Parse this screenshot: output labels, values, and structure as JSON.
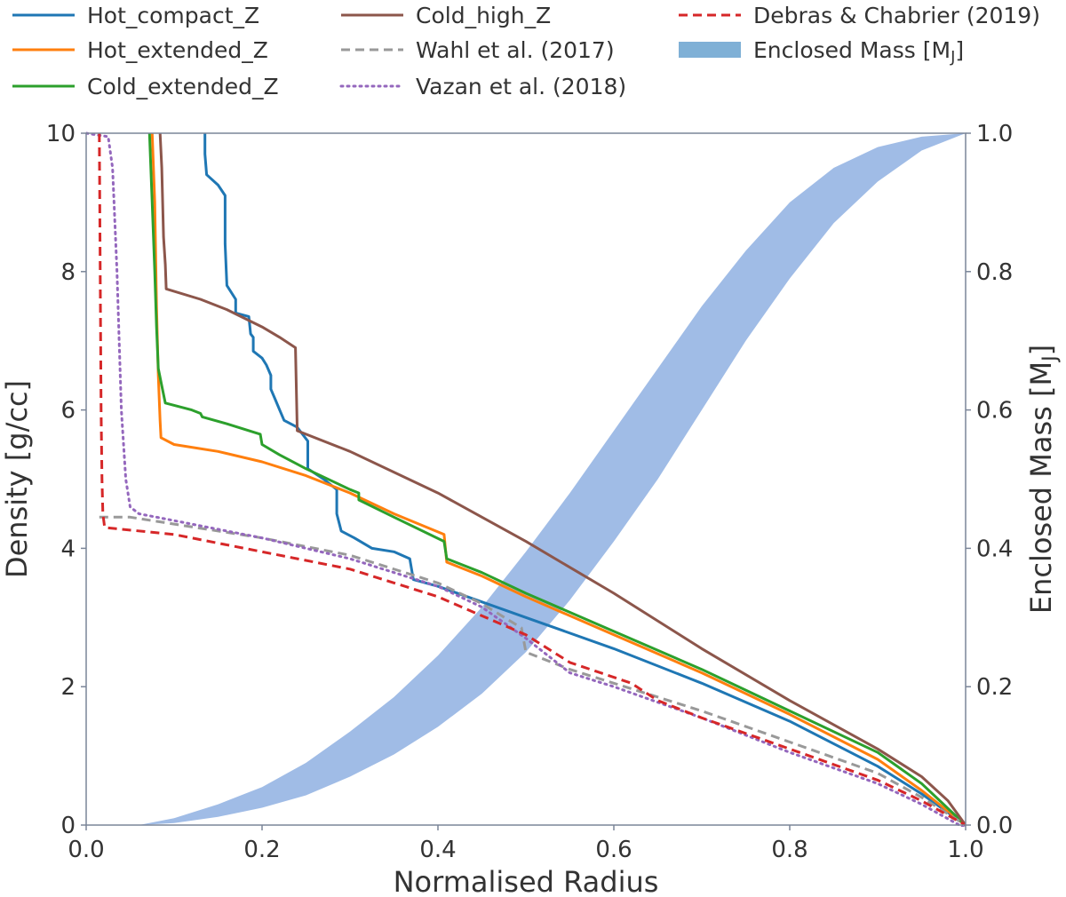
{
  "chart_data": {
    "type": "line",
    "title": "",
    "xlabel": "Normalised Radius",
    "ylabel": "Density [g/cc]",
    "y2label_main": "Enclosed Mass [M",
    "y2label_sub": "J",
    "y2label_close": "]",
    "xlim": [
      0.0,
      1.0
    ],
    "ylim": [
      0,
      10
    ],
    "y2lim": [
      0.0,
      1.0
    ],
    "grid": false,
    "legend_placement": "top, above plot, three columns",
    "x_ticks": [
      "0.0",
      "0.2",
      "0.4",
      "0.6",
      "0.8",
      "1.0"
    ],
    "y_ticks": [
      "0",
      "2",
      "4",
      "6",
      "8",
      "10"
    ],
    "y2_ticks": [
      "0.0",
      "0.2",
      "0.4",
      "0.6",
      "0.8",
      "1.0"
    ],
    "series": [
      {
        "name": "Hot_compact_Z",
        "color": "#1f77b4",
        "style": "solid",
        "legend_col": 0,
        "legend_row": 0,
        "points": [
          [
            0.135,
            10.0
          ],
          [
            0.135,
            9.7
          ],
          [
            0.137,
            9.4
          ],
          [
            0.15,
            9.25
          ],
          [
            0.158,
            9.1
          ],
          [
            0.158,
            8.4
          ],
          [
            0.16,
            7.8
          ],
          [
            0.17,
            7.6
          ],
          [
            0.17,
            7.4
          ],
          [
            0.185,
            7.35
          ],
          [
            0.187,
            7.1
          ],
          [
            0.19,
            7.05
          ],
          [
            0.19,
            6.85
          ],
          [
            0.2,
            6.75
          ],
          [
            0.205,
            6.65
          ],
          [
            0.21,
            6.5
          ],
          [
            0.21,
            6.3
          ],
          [
            0.215,
            6.15
          ],
          [
            0.22,
            6.0
          ],
          [
            0.225,
            5.85
          ],
          [
            0.24,
            5.75
          ],
          [
            0.246,
            5.65
          ],
          [
            0.252,
            5.55
          ],
          [
            0.252,
            5.15
          ],
          [
            0.27,
            5.0
          ],
          [
            0.285,
            4.85
          ],
          [
            0.285,
            4.5
          ],
          [
            0.29,
            4.25
          ],
          [
            0.305,
            4.15
          ],
          [
            0.325,
            4.0
          ],
          [
            0.35,
            3.95
          ],
          [
            0.368,
            3.85
          ],
          [
            0.372,
            3.55
          ],
          [
            0.4,
            3.45
          ],
          [
            0.5,
            3.0
          ],
          [
            0.6,
            2.55
          ],
          [
            0.7,
            2.05
          ],
          [
            0.8,
            1.5
          ],
          [
            0.9,
            0.85
          ],
          [
            0.95,
            0.45
          ],
          [
            1.0,
            0.0
          ]
        ]
      },
      {
        "name": "Hot_extended_Z",
        "color": "#ff7f0e",
        "style": "solid",
        "legend_col": 0,
        "legend_row": 1,
        "points": [
          [
            0.075,
            10.0
          ],
          [
            0.078,
            9.0
          ],
          [
            0.08,
            7.5
          ],
          [
            0.082,
            6.5
          ],
          [
            0.084,
            5.85
          ],
          [
            0.085,
            5.6
          ],
          [
            0.1,
            5.5
          ],
          [
            0.15,
            5.4
          ],
          [
            0.2,
            5.25
          ],
          [
            0.25,
            5.05
          ],
          [
            0.3,
            4.8
          ],
          [
            0.35,
            4.5
          ],
          [
            0.407,
            4.2
          ],
          [
            0.41,
            3.8
          ],
          [
            0.45,
            3.6
          ],
          [
            0.5,
            3.3
          ],
          [
            0.6,
            2.75
          ],
          [
            0.7,
            2.2
          ],
          [
            0.8,
            1.6
          ],
          [
            0.9,
            0.95
          ],
          [
            0.95,
            0.5
          ],
          [
            1.0,
            0.0
          ]
        ]
      },
      {
        "name": "Cold_extended_Z",
        "color": "#2ca02c",
        "style": "solid",
        "legend_col": 0,
        "legend_row": 2,
        "points": [
          [
            0.072,
            10.0
          ],
          [
            0.075,
            9.0
          ],
          [
            0.078,
            8.0
          ],
          [
            0.08,
            7.2
          ],
          [
            0.082,
            6.6
          ],
          [
            0.086,
            6.35
          ],
          [
            0.09,
            6.1
          ],
          [
            0.12,
            6.0
          ],
          [
            0.13,
            5.95
          ],
          [
            0.132,
            5.9
          ],
          [
            0.16,
            5.8
          ],
          [
            0.198,
            5.65
          ],
          [
            0.2,
            5.5
          ],
          [
            0.22,
            5.35
          ],
          [
            0.25,
            5.15
          ],
          [
            0.3,
            4.85
          ],
          [
            0.31,
            4.8
          ],
          [
            0.31,
            4.7
          ],
          [
            0.35,
            4.45
          ],
          [
            0.407,
            4.1
          ],
          [
            0.41,
            3.85
          ],
          [
            0.45,
            3.65
          ],
          [
            0.5,
            3.35
          ],
          [
            0.6,
            2.8
          ],
          [
            0.7,
            2.25
          ],
          [
            0.8,
            1.65
          ],
          [
            0.9,
            1.05
          ],
          [
            0.95,
            0.6
          ],
          [
            1.0,
            0.0
          ]
        ]
      },
      {
        "name": "Cold_high_Z",
        "color": "#8c564b",
        "style": "solid",
        "legend_col": 1,
        "legend_row": 0,
        "points": [
          [
            0.084,
            10.0
          ],
          [
            0.086,
            9.5
          ],
          [
            0.088,
            8.5
          ],
          [
            0.09,
            8.1
          ],
          [
            0.091,
            7.75
          ],
          [
            0.13,
            7.6
          ],
          [
            0.16,
            7.45
          ],
          [
            0.2,
            7.2
          ],
          [
            0.22,
            7.05
          ],
          [
            0.238,
            6.9
          ],
          [
            0.24,
            5.7
          ],
          [
            0.3,
            5.4
          ],
          [
            0.4,
            4.8
          ],
          [
            0.45,
            4.45
          ],
          [
            0.5,
            4.1
          ],
          [
            0.6,
            3.35
          ],
          [
            0.7,
            2.55
          ],
          [
            0.8,
            1.8
          ],
          [
            0.9,
            1.1
          ],
          [
            0.95,
            0.7
          ],
          [
            0.98,
            0.35
          ],
          [
            1.0,
            0.0
          ]
        ]
      },
      {
        "name": "Wahl et al. (2017)",
        "color": "#999999",
        "style": "dashed",
        "legend_col": 1,
        "legend_row": 1,
        "points": [
          [
            0.015,
            4.45
          ],
          [
            0.05,
            4.45
          ],
          [
            0.1,
            4.35
          ],
          [
            0.2,
            4.15
          ],
          [
            0.3,
            3.9
          ],
          [
            0.4,
            3.5
          ],
          [
            0.45,
            3.2
          ],
          [
            0.495,
            2.85
          ],
          [
            0.5,
            2.5
          ],
          [
            0.55,
            2.25
          ],
          [
            0.6,
            2.05
          ],
          [
            0.7,
            1.65
          ],
          [
            0.8,
            1.2
          ],
          [
            0.9,
            0.75
          ],
          [
            0.95,
            0.4
          ],
          [
            1.0,
            0.0
          ]
        ]
      },
      {
        "name": "Vazan et al. (2018)",
        "color": "#9467bd",
        "style": "dotted",
        "legend_col": 1,
        "legend_row": 2,
        "points": [
          [
            0.0,
            10.0
          ],
          [
            0.025,
            9.95
          ],
          [
            0.03,
            9.5
          ],
          [
            0.035,
            8.0
          ],
          [
            0.04,
            6.0
          ],
          [
            0.045,
            5.0
          ],
          [
            0.05,
            4.6
          ],
          [
            0.06,
            4.5
          ],
          [
            0.1,
            4.4
          ],
          [
            0.2,
            4.15
          ],
          [
            0.3,
            3.85
          ],
          [
            0.4,
            3.45
          ],
          [
            0.45,
            3.15
          ],
          [
            0.5,
            2.7
          ],
          [
            0.55,
            2.2
          ],
          [
            0.6,
            2.0
          ],
          [
            0.7,
            1.55
          ],
          [
            0.8,
            1.05
          ],
          [
            0.9,
            0.6
          ],
          [
            0.95,
            0.3
          ],
          [
            1.0,
            -0.05
          ]
        ]
      },
      {
        "name": "Debras & Chabrier (2019)",
        "color": "#d62728",
        "style": "dashed",
        "legend_col": 2,
        "legend_row": 0,
        "points": [
          [
            0.015,
            10.0
          ],
          [
            0.016,
            8.0
          ],
          [
            0.017,
            6.0
          ],
          [
            0.018,
            5.0
          ],
          [
            0.019,
            4.5
          ],
          [
            0.021,
            4.3
          ],
          [
            0.1,
            4.2
          ],
          [
            0.2,
            3.95
          ],
          [
            0.3,
            3.7
          ],
          [
            0.4,
            3.3
          ],
          [
            0.5,
            2.75
          ],
          [
            0.55,
            2.35
          ],
          [
            0.62,
            2.05
          ],
          [
            0.65,
            1.8
          ],
          [
            0.7,
            1.55
          ],
          [
            0.8,
            1.1
          ],
          [
            0.9,
            0.65
          ],
          [
            0.95,
            0.35
          ],
          [
            1.0,
            0.0
          ]
        ]
      }
    ],
    "mass_band": {
      "name": "Enclosed Mass [M",
      "name_sub": "J",
      "name_close": "]",
      "color": "#a0bce6",
      "legend_col": 2,
      "legend_row": 1,
      "x": [
        0.06,
        0.1,
        0.15,
        0.2,
        0.25,
        0.3,
        0.35,
        0.4,
        0.45,
        0.5,
        0.55,
        0.6,
        0.65,
        0.7,
        0.75,
        0.8,
        0.85,
        0.9,
        0.95,
        1.0
      ],
      "lower": [
        0.0,
        0.003,
        0.012,
        0.025,
        0.043,
        0.07,
        0.102,
        0.142,
        0.19,
        0.25,
        0.325,
        0.41,
        0.5,
        0.6,
        0.7,
        0.79,
        0.87,
        0.93,
        0.975,
        1.0
      ],
      "upper": [
        0.0,
        0.01,
        0.03,
        0.055,
        0.09,
        0.135,
        0.185,
        0.245,
        0.315,
        0.395,
        0.48,
        0.57,
        0.66,
        0.75,
        0.83,
        0.9,
        0.95,
        0.98,
        0.995,
        1.0
      ]
    }
  }
}
